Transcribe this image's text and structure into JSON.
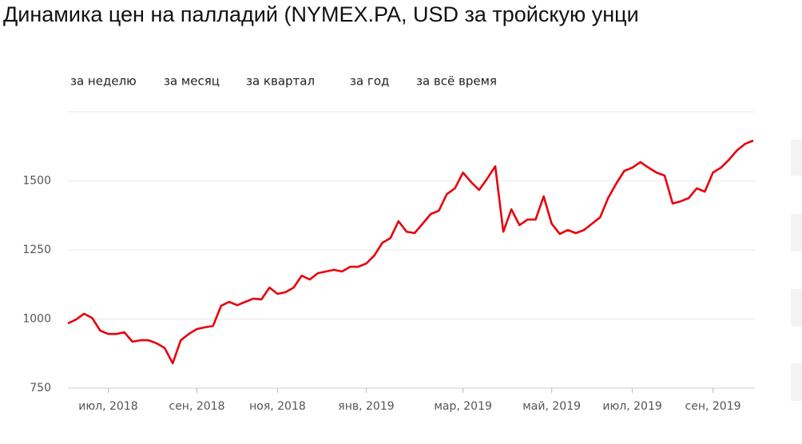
{
  "title": "Динамика цен на палладий (NYMEX.PA, USD за тройскую унци",
  "buttons": [
    "за неделю",
    "за месяц",
    "за квартал",
    "за год",
    "за всё время"
  ],
  "chart_data": {
    "type": "line",
    "color": "#e8000b",
    "grid": true,
    "ylim": [
      750,
      1750
    ],
    "yticks": [
      750,
      1000,
      1250,
      1500
    ],
    "categories": [
      null,
      null,
      null,
      null,
      null,
      "июл, 2018",
      null,
      null,
      null,
      null,
      null,
      null,
      null,
      null,
      null,
      null,
      "сен, 2018",
      null,
      null,
      null,
      null,
      null,
      null,
      null,
      null,
      null,
      "ноя, 2018",
      null,
      null,
      null,
      null,
      null,
      null,
      null,
      null,
      null,
      null,
      "янв, 2019",
      null,
      null,
      null,
      null,
      null,
      null,
      null,
      null,
      null,
      null,
      null,
      "мар, 2019",
      null,
      null,
      null,
      null,
      null,
      null,
      null,
      null,
      null,
      null,
      "май, 2019",
      null,
      null,
      null,
      null,
      null,
      null,
      null,
      null,
      null,
      "июл, 2019",
      null,
      null,
      null,
      null,
      null,
      null,
      null,
      null,
      null,
      "сен, 2019",
      null,
      null,
      null,
      null,
      null
    ],
    "values": [
      984,
      998,
      1019,
      1004,
      958,
      946,
      946,
      952,
      918,
      923,
      923,
      912,
      895,
      840,
      923,
      946,
      964,
      970,
      975,
      1048,
      1062,
      1050,
      1062,
      1074,
      1071,
      1114,
      1091,
      1097,
      1114,
      1157,
      1143,
      1166,
      1172,
      1178,
      1172,
      1189,
      1189,
      1201,
      1230,
      1276,
      1293,
      1354,
      1316,
      1311,
      1345,
      1380,
      1392,
      1452,
      1473,
      1530,
      1496,
      1467,
      1508,
      1553,
      1316,
      1397,
      1340,
      1360,
      1360,
      1444,
      1345,
      1308,
      1322,
      1311,
      1322,
      1345,
      1368,
      1438,
      1490,
      1536,
      1548,
      1568,
      1548,
      1530,
      1519,
      1418,
      1426,
      1438,
      1473,
      1461,
      1530,
      1548,
      1577,
      1611,
      1634,
      1646
    ]
  }
}
